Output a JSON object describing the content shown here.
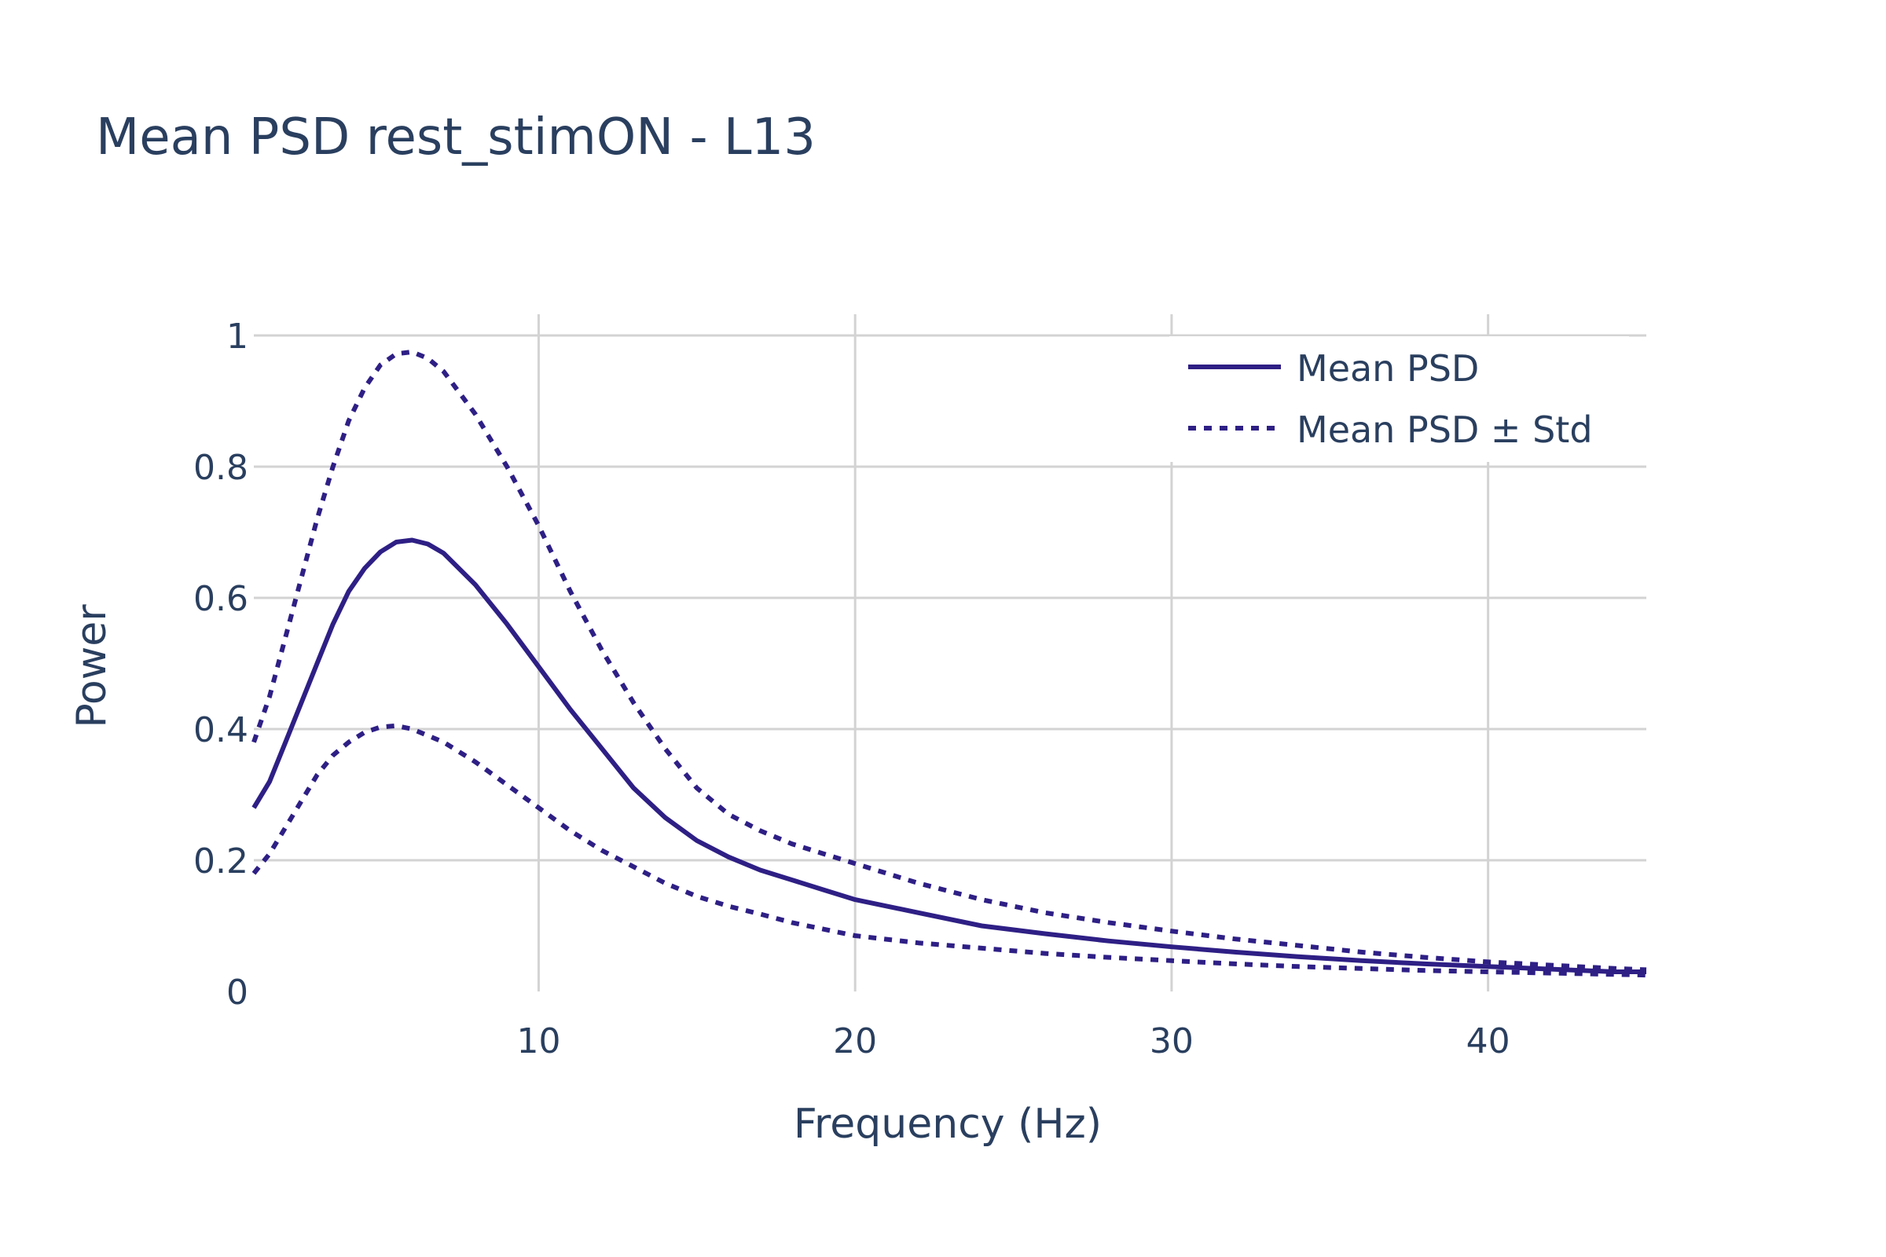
{
  "chart_data": {
    "type": "line",
    "title": "Mean PSD rest_stimON - L13",
    "xlabel": "Frequency (Hz)",
    "ylabel": "Power",
    "xlim": [
      1,
      45
    ],
    "ylim": [
      0,
      1.0
    ],
    "x_ticks": [
      10,
      20,
      30,
      40
    ],
    "x_tick_labels": [
      "10",
      "20",
      "30",
      "40"
    ],
    "y_ticks": [
      0,
      0.2,
      0.4,
      0.6,
      0.8,
      1
    ],
    "y_tick_labels": [
      "0",
      "0.2",
      "0.4",
      "0.6",
      "0.8",
      "1"
    ],
    "grid": true,
    "legend_position": "top-right",
    "line_color": "#2e1f85",
    "x": [
      1,
      1.5,
      2,
      2.5,
      3,
      3.5,
      4,
      4.5,
      5,
      5.5,
      6,
      6.5,
      7,
      8,
      9,
      10,
      11,
      12,
      13,
      14,
      15,
      16,
      17,
      18,
      19,
      20,
      22,
      24,
      26,
      28,
      30,
      32,
      34,
      36,
      38,
      40,
      42,
      44,
      45
    ],
    "series": [
      {
        "name": "Mean PSD",
        "style": "solid",
        "values": [
          0.28,
          0.32,
          0.38,
          0.44,
          0.5,
          0.56,
          0.61,
          0.645,
          0.67,
          0.685,
          0.688,
          0.682,
          0.668,
          0.62,
          0.56,
          0.495,
          0.43,
          0.37,
          0.31,
          0.265,
          0.23,
          0.205,
          0.185,
          0.17,
          0.155,
          0.14,
          0.12,
          0.1,
          0.088,
          0.077,
          0.068,
          0.06,
          0.053,
          0.047,
          0.042,
          0.038,
          0.034,
          0.03,
          0.03
        ]
      },
      {
        "name": "Mean PSD ± Std",
        "style": "dotted",
        "values": [
          0.38,
          0.45,
          0.54,
          0.63,
          0.72,
          0.8,
          0.87,
          0.92,
          0.955,
          0.972,
          0.975,
          0.965,
          0.945,
          0.88,
          0.8,
          0.71,
          0.61,
          0.52,
          0.44,
          0.37,
          0.31,
          0.27,
          0.245,
          0.225,
          0.21,
          0.195,
          0.165,
          0.14,
          0.12,
          0.105,
          0.092,
          0.08,
          0.07,
          0.06,
          0.052,
          0.045,
          0.04,
          0.035,
          0.033
        ]
      },
      {
        "name": "",
        "style": "dotted",
        "values": [
          0.18,
          0.21,
          0.25,
          0.29,
          0.33,
          0.36,
          0.38,
          0.395,
          0.403,
          0.405,
          0.4,
          0.39,
          0.38,
          0.35,
          0.315,
          0.28,
          0.245,
          0.215,
          0.19,
          0.165,
          0.145,
          0.13,
          0.118,
          0.105,
          0.095,
          0.085,
          0.074,
          0.066,
          0.058,
          0.052,
          0.047,
          0.042,
          0.038,
          0.035,
          0.032,
          0.03,
          0.028,
          0.026,
          0.025
        ]
      }
    ],
    "legend": [
      {
        "label": "Mean PSD",
        "style": "solid"
      },
      {
        "label": "Mean PSD ± Std",
        "style": "dotted"
      }
    ]
  }
}
